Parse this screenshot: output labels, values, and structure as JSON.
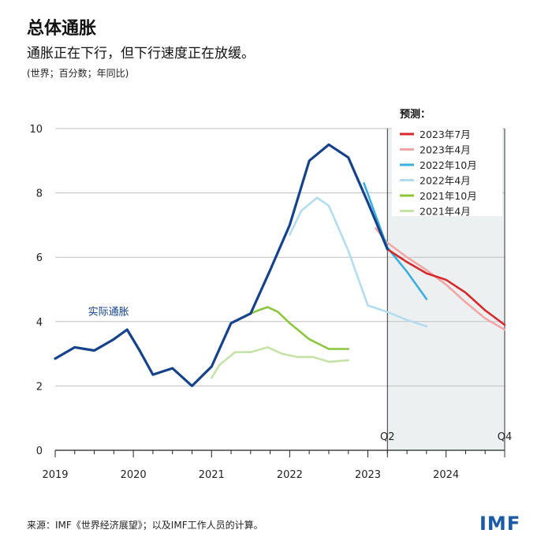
{
  "header": {
    "title": "总体通胀",
    "subtitle": "通胀正在下行，但下行速度正在放缓。",
    "note": "(世界；百分数；年同比)"
  },
  "footer": {
    "source": "来源：IMF《世界经济展望》；以及IMF工作人员的计算。",
    "logo_text": "IMF"
  },
  "chart_data": {
    "type": "line",
    "xlim": [
      2019,
      2024.75
    ],
    "ylim": [
      0,
      10
    ],
    "y_ticks": [
      0,
      2,
      4,
      6,
      8,
      10
    ],
    "x_ticks": [
      2019,
      2020,
      2021,
      2022,
      2023,
      2024
    ],
    "x_tick_labels": [
      "2019",
      "2020",
      "2021",
      "2022",
      "2023",
      "2024"
    ],
    "forecast_shading": {
      "from": 2023.25,
      "to": 2024.75,
      "labels": [
        "Q2",
        "Q4"
      ]
    },
    "grid": "horizontal",
    "legend_title": "预测：",
    "legend_position": "top-right",
    "series": [
      {
        "label": "实际通胀",
        "color": "#15428b",
        "legend": false,
        "x": [
          2019,
          2019.25,
          2019.5,
          2019.75,
          2019.92,
          2020.08,
          2020.25,
          2020.5,
          2020.75,
          2021,
          2021.25,
          2021.5,
          2021.75,
          2022,
          2022.25,
          2022.5,
          2022.75,
          2023,
          2023.25
        ],
        "y": [
          2.85,
          3.2,
          3.1,
          3.45,
          3.75,
          3.1,
          2.35,
          2.55,
          2.0,
          2.6,
          3.95,
          4.25,
          5.6,
          7.0,
          9.0,
          9.5,
          9.1,
          7.7,
          6.25
        ]
      },
      {
        "label": "2023年7月",
        "color": "#d7282e",
        "legend": true,
        "x": [
          2023.25,
          2023.5,
          2023.75,
          2024,
          2024.25,
          2024.5,
          2024.75
        ],
        "y": [
          6.25,
          5.85,
          5.5,
          5.3,
          4.9,
          4.35,
          3.9
        ]
      },
      {
        "label": "2023年4月",
        "color": "#f2a6a6",
        "legend": true,
        "x": [
          2023.1,
          2023.25,
          2023.5,
          2023.75,
          2024,
          2024.25,
          2024.5,
          2024.75
        ],
        "y": [
          6.9,
          6.45,
          6.0,
          5.6,
          5.15,
          4.6,
          4.1,
          3.75
        ]
      },
      {
        "label": "2022年10月",
        "color": "#3aaee0",
        "legend": true,
        "x": [
          2022.95,
          2023.1,
          2023.25,
          2023.5,
          2023.75
        ],
        "y": [
          8.3,
          7.3,
          6.3,
          5.55,
          4.7
        ]
      },
      {
        "label": "2022年4月",
        "color": "#b3dcf0",
        "legend": true,
        "x": [
          2022,
          2022.15,
          2022.35,
          2022.5,
          2022.75,
          2023,
          2023.25,
          2023.5,
          2023.75
        ],
        "y": [
          6.7,
          7.45,
          7.85,
          7.6,
          6.2,
          4.5,
          4.3,
          4.05,
          3.85
        ]
      },
      {
        "label": "2021年10月",
        "color": "#8cc63f",
        "legend": true,
        "x": [
          2021.5,
          2021.6,
          2021.72,
          2021.85,
          2022,
          2022.25,
          2022.5,
          2022.75
        ],
        "y": [
          4.25,
          4.35,
          4.45,
          4.3,
          3.95,
          3.45,
          3.15,
          3.15
        ]
      },
      {
        "label": "2021年4月",
        "color": "#c5e3a6",
        "legend": true,
        "x": [
          2021,
          2021.1,
          2021.3,
          2021.5,
          2021.72,
          2021.9,
          2022.1,
          2022.3,
          2022.5,
          2022.75
        ],
        "y": [
          2.25,
          2.65,
          3.05,
          3.05,
          3.2,
          3.0,
          2.9,
          2.9,
          2.75,
          2.8
        ]
      }
    ],
    "annotation": {
      "text": "实际通胀",
      "x": 2019.42,
      "y": 4.2
    }
  }
}
